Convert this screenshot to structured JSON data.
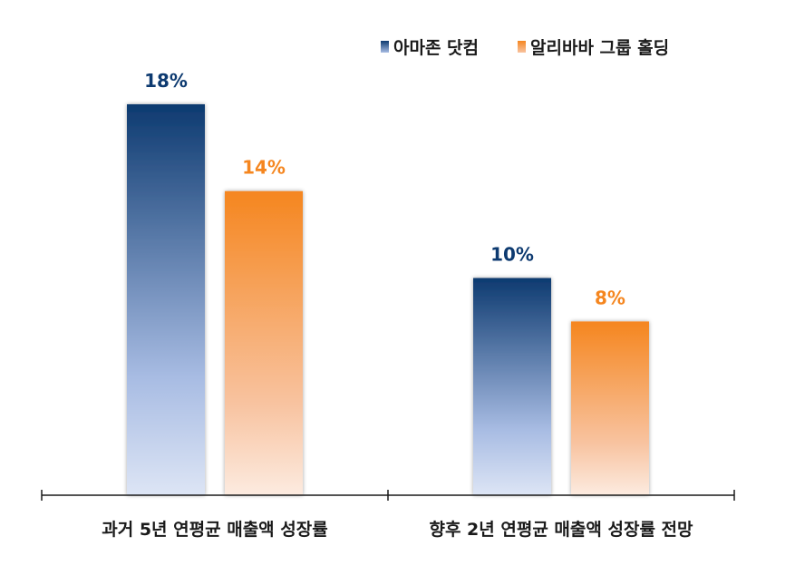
{
  "chart_data": {
    "type": "bar",
    "categories": [
      "과거 5년 연평균 매출액 성장률",
      "향후 2년 연평균 매출액 성장률 전망"
    ],
    "series": [
      {
        "name": "아마존 닷컴",
        "values": [
          18,
          10
        ],
        "labels": [
          "18%",
          "10%"
        ],
        "color": "#0d3a70"
      },
      {
        "name": "알리바바 그룹 홀딩",
        "values": [
          14,
          8
        ],
        "labels": [
          "14%",
          "8%"
        ],
        "color": "#f5861f"
      }
    ],
    "ylim": [
      0,
      22.8
    ],
    "legend_position": "top-right",
    "grid": false
  }
}
